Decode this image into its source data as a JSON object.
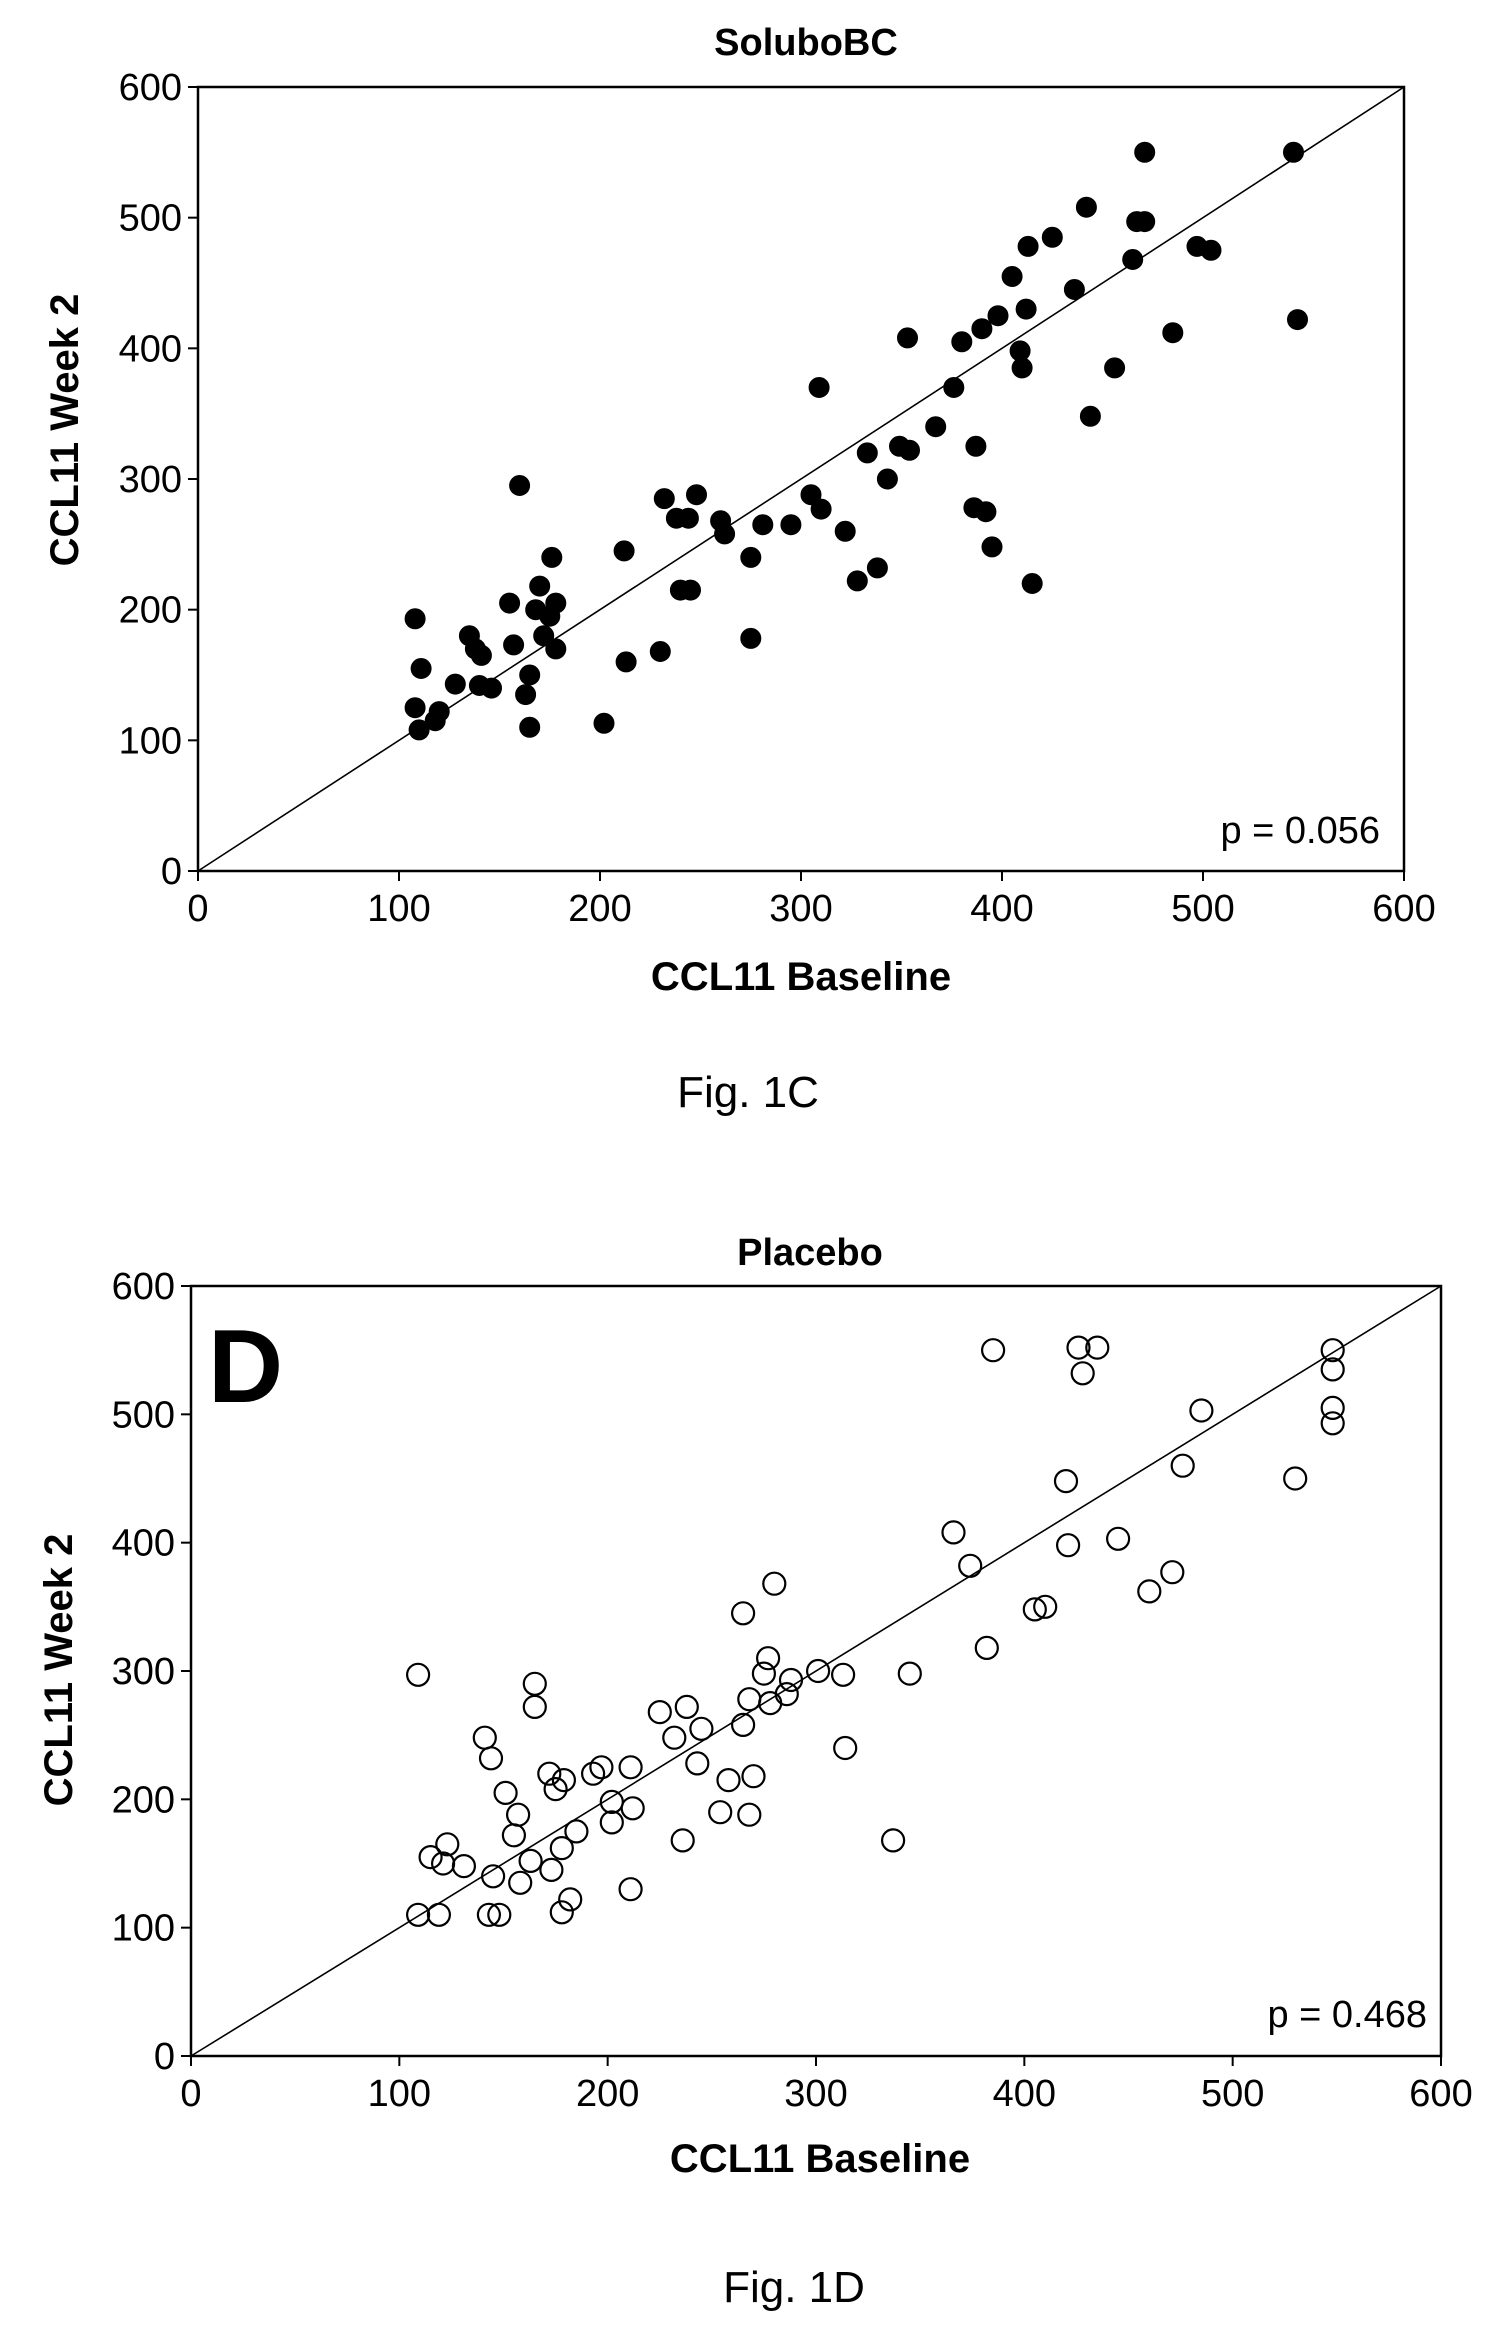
{
  "chart_data": [
    {
      "type": "scatter",
      "title": "SolubоBC",
      "panel_label": "",
      "xlabel": "CCL11 Baseline",
      "ylabel": "CCL11 Week 2",
      "xlim": [
        0,
        600
      ],
      "ylim": [
        0,
        600
      ],
      "xticks": [
        "0",
        "100",
        "200",
        "300",
        "400",
        "500",
        "600"
      ],
      "yticks": [
        "0",
        "100",
        "200",
        "300",
        "400",
        "500",
        "600"
      ],
      "annotation": "p = 0.056",
      "caption": "Fig. 1C",
      "marker": "filled",
      "grid": false,
      "reference_line": [
        [
          0,
          0
        ],
        [
          600,
          600
        ]
      ],
      "points": [
        [
          108,
          193
        ],
        [
          108,
          125
        ],
        [
          110,
          108
        ],
        [
          111,
          155
        ],
        [
          118,
          115
        ],
        [
          120,
          122
        ],
        [
          128,
          143
        ],
        [
          135,
          180
        ],
        [
          138,
          170
        ],
        [
          140,
          142
        ],
        [
          141,
          165
        ],
        [
          146,
          140
        ],
        [
          155,
          205
        ],
        [
          157,
          173
        ],
        [
          160,
          295
        ],
        [
          163,
          135
        ],
        [
          165,
          110
        ],
        [
          165,
          150
        ],
        [
          168,
          200
        ],
        [
          170,
          218
        ],
        [
          172,
          180
        ],
        [
          175,
          195
        ],
        [
          176,
          240
        ],
        [
          178,
          205
        ],
        [
          178,
          170
        ],
        [
          202,
          113
        ],
        [
          212,
          245
        ],
        [
          213,
          160
        ],
        [
          230,
          168
        ],
        [
          232,
          285
        ],
        [
          238,
          270
        ],
        [
          240,
          215
        ],
        [
          244,
          270
        ],
        [
          245,
          215
        ],
        [
          248,
          288
        ],
        [
          260,
          268
        ],
        [
          262,
          258
        ],
        [
          275,
          240
        ],
        [
          275,
          178
        ],
        [
          281,
          265
        ],
        [
          295,
          265
        ],
        [
          305,
          288
        ],
        [
          309,
          370
        ],
        [
          310,
          277
        ],
        [
          322,
          260
        ],
        [
          328,
          222
        ],
        [
          333,
          320
        ],
        [
          338,
          232
        ],
        [
          343,
          300
        ],
        [
          349,
          325
        ],
        [
          353,
          408
        ],
        [
          354,
          322
        ],
        [
          367,
          340
        ],
        [
          376,
          370
        ],
        [
          380,
          405
        ],
        [
          386,
          278
        ],
        [
          387,
          325
        ],
        [
          390,
          415
        ],
        [
          392,
          275
        ],
        [
          395,
          248
        ],
        [
          398,
          425
        ],
        [
          405,
          455
        ],
        [
          409,
          398
        ],
        [
          410,
          385
        ],
        [
          412,
          430
        ],
        [
          413,
          478
        ],
        [
          415,
          220
        ],
        [
          425,
          485
        ],
        [
          436,
          445
        ],
        [
          442,
          508
        ],
        [
          444,
          348
        ],
        [
          456,
          385
        ],
        [
          465,
          468
        ],
        [
          467,
          497
        ],
        [
          471,
          497
        ],
        [
          471,
          550
        ],
        [
          485,
          412
        ],
        [
          497,
          478
        ],
        [
          504,
          475
        ],
        [
          545,
          550
        ],
        [
          547,
          422
        ]
      ]
    },
    {
      "type": "scatter",
      "title": "Placebo",
      "panel_label": "D",
      "xlabel": "CCL11 Baseline",
      "ylabel": "CCL11 Week 2",
      "xlim": [
        0,
        600
      ],
      "ylim": [
        0,
        600
      ],
      "xticks": [
        "0",
        "100",
        "200",
        "300",
        "400",
        "500",
        "600"
      ],
      "yticks": [
        "0",
        "100",
        "200",
        "300",
        "400",
        "500",
        "600"
      ],
      "annotation": "p = 0.468",
      "caption": "Fig. 1D",
      "marker": "hollow",
      "grid": false,
      "reference_line": [
        [
          0,
          0
        ],
        [
          600,
          600
        ]
      ],
      "points": [
        [
          109,
          297
        ],
        [
          109,
          110
        ],
        [
          115,
          155
        ],
        [
          119,
          110
        ],
        [
          121,
          150
        ],
        [
          123,
          165
        ],
        [
          131,
          148
        ],
        [
          141,
          248
        ],
        [
          144,
          232
        ],
        [
          143,
          110
        ],
        [
          148,
          110
        ],
        [
          145,
          140
        ],
        [
          151,
          205
        ],
        [
          155,
          172
        ],
        [
          157,
          188
        ],
        [
          158,
          135
        ],
        [
          163,
          152
        ],
        [
          165,
          290
        ],
        [
          165,
          272
        ],
        [
          173,
          145
        ],
        [
          172,
          220
        ],
        [
          175,
          208
        ],
        [
          178,
          112
        ],
        [
          178,
          162
        ],
        [
          179,
          215
        ],
        [
          182,
          122
        ],
        [
          185,
          175
        ],
        [
          193,
          220
        ],
        [
          197,
          225
        ],
        [
          202,
          182
        ],
        [
          202,
          198
        ],
        [
          211,
          225
        ],
        [
          212,
          193
        ],
        [
          211,
          130
        ],
        [
          225,
          268
        ],
        [
          232,
          248
        ],
        [
          236,
          168
        ],
        [
          238,
          272
        ],
        [
          243,
          228
        ],
        [
          245,
          255
        ],
        [
          254,
          190
        ],
        [
          258,
          215
        ],
        [
          265,
          345
        ],
        [
          265,
          258
        ],
        [
          268,
          188
        ],
        [
          268,
          278
        ],
        [
          270,
          218
        ],
        [
          275,
          298
        ],
        [
          277,
          310
        ],
        [
          278,
          275
        ],
        [
          280,
          368
        ],
        [
          286,
          282
        ],
        [
          288,
          293
        ],
        [
          301,
          300
        ],
        [
          313,
          297
        ],
        [
          314,
          240
        ],
        [
          345,
          298
        ],
        [
          337,
          168
        ],
        [
          366,
          408
        ],
        [
          374,
          382
        ],
        [
          382,
          318
        ],
        [
          385,
          550
        ],
        [
          405,
          348
        ],
        [
          410,
          350
        ],
        [
          420,
          448
        ],
        [
          421,
          398
        ],
        [
          426,
          552
        ],
        [
          428,
          532
        ],
        [
          435,
          552
        ],
        [
          445,
          403
        ],
        [
          460,
          362
        ],
        [
          471,
          377
        ],
        [
          476,
          460
        ],
        [
          485,
          503
        ],
        [
          530,
          450
        ],
        [
          548,
          550
        ],
        [
          548,
          535
        ],
        [
          548,
          505
        ],
        [
          548,
          493
        ]
      ]
    }
  ]
}
